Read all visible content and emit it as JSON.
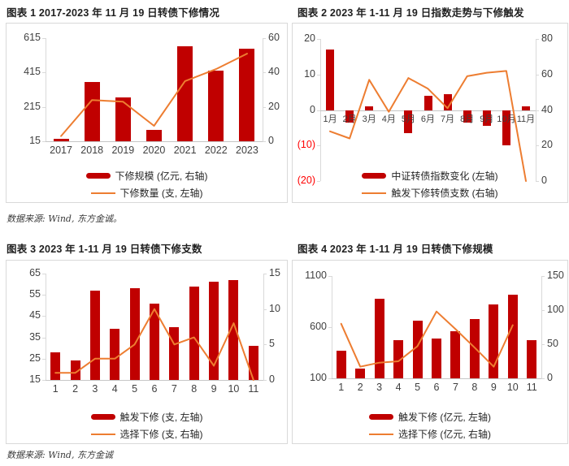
{
  "colors": {
    "bar": "#c00000",
    "line": "#ed7d31",
    "axis": "#d9d9d9",
    "tick_label": "#404040",
    "negative_tick_label": "#ff0000",
    "title": "#1f1f1f"
  },
  "footers": {
    "row1": "数据来源: Wind, 东方金诚。",
    "row2": "数据来源: Wind, 东方金诚"
  },
  "chart_data": [
    {
      "type": "bar+line",
      "title": "图表 1 2017-2023 年 11 月 19 日转债下修情况",
      "categories": [
        "2017",
        "2018",
        "2019",
        "2020",
        "2021",
        "2022",
        "2023"
      ],
      "series": [
        {
          "name": "下修规模 (亿元, 右轴)",
          "type": "bar",
          "plot_axis": "left",
          "values": [
            29,
            361,
            271,
            80,
            567,
            428,
            552
          ]
        },
        {
          "name": "下修数量 (支, 左轴)",
          "type": "line",
          "plot_axis": "right",
          "values": [
            3,
            24,
            23,
            9,
            35,
            42,
            51
          ]
        }
      ],
      "left_axis": {
        "ticks": [
          "615",
          "415",
          "215",
          "15"
        ],
        "min": 15,
        "max": 615
      },
      "right_axis": {
        "ticks": [
          "60",
          "40",
          "20",
          "0"
        ],
        "min": 0,
        "max": 60
      },
      "legend": [
        "下修规模 (亿元, 右轴)",
        "下修数量 (支, 左轴)"
      ],
      "grid": false,
      "legend_position": "bottom"
    },
    {
      "type": "bar+line",
      "title": "图表 2 2023 年 1-11 月 19 日指数走势与下修触发",
      "categories": [
        "1月",
        "2月",
        "3月",
        "4月",
        "5月",
        "6月",
        "7月",
        "8月",
        "9月",
        "10月",
        "11月"
      ],
      "series": [
        {
          "name": "中证转债指数变化 (左轴)",
          "type": "bar",
          "plot_axis": "left",
          "values": [
            17,
            -3.5,
            1,
            0,
            -6.5,
            4,
            4.5,
            -3.5,
            -4.5,
            -10,
            1
          ]
        },
        {
          "name": "触发下修转债支数 (右轴)",
          "type": "line",
          "plot_axis": "right",
          "values": [
            28,
            24,
            57,
            39,
            58,
            52,
            41,
            59,
            61,
            62,
            0
          ]
        }
      ],
      "left_axis": {
        "ticks": [
          "20",
          "10",
          "0",
          "(10)",
          "(20)"
        ],
        "min": -20,
        "max": 20
      },
      "right_axis": {
        "ticks": [
          "80",
          "60",
          "40",
          "20",
          "0"
        ],
        "min": 0,
        "max": 80
      },
      "legend": [
        "中证转债指数变化 (左轴)",
        "触发下修转债支数 (右轴)"
      ],
      "grid": false,
      "legend_position": "bottom"
    },
    {
      "type": "bar+line",
      "title": "图表 3 2023 年 1-11 月 19 日转债下修支数",
      "categories": [
        "1",
        "2",
        "3",
        "4",
        "5",
        "6",
        "7",
        "8",
        "9",
        "10",
        "11"
      ],
      "series": [
        {
          "name": "触发下修 (支, 左轴)",
          "type": "bar",
          "plot_axis": "left",
          "values": [
            28,
            24,
            57,
            39,
            58,
            51,
            40,
            59,
            61,
            62,
            31
          ]
        },
        {
          "name": "选择下修 (支, 右轴)",
          "type": "line",
          "plot_axis": "right",
          "values": [
            1,
            1,
            3,
            3,
            5,
            10,
            5,
            6,
            2,
            8,
            0
          ]
        }
      ],
      "left_axis": {
        "ticks": [
          "65",
          "55",
          "45",
          "35",
          "25",
          "15"
        ],
        "min": 15,
        "max": 65
      },
      "right_axis": {
        "ticks": [
          "15",
          "10",
          "5",
          "0"
        ],
        "min": 0,
        "max": 15
      },
      "legend": [
        "触发下修 (支, 左轴)",
        "选择下修 (支, 右轴)"
      ],
      "grid": false,
      "legend_position": "bottom"
    },
    {
      "type": "bar+line",
      "title": "图表 4 2023 年 1-11 月 19 日转债下修规模",
      "categories": [
        "1",
        "2",
        "3",
        "4",
        "5",
        "6",
        "7",
        "8",
        "9",
        "10",
        "11"
      ],
      "series": [
        {
          "name": "触发下修 (亿元, 左轴)",
          "type": "bar",
          "plot_axis": "left",
          "values": [
            370,
            195,
            880,
            470,
            665,
            490,
            560,
            680,
            820,
            920,
            470
          ]
        },
        {
          "name": "选择下修 (亿元, 右轴)",
          "type": "line",
          "plot_axis": "right",
          "values": [
            80,
            17,
            23,
            25,
            47,
            98,
            72,
            45,
            17,
            78,
            null
          ]
        }
      ],
      "left_axis": {
        "ticks": [
          "1100",
          "600",
          "100"
        ],
        "min": 100,
        "max": 1100
      },
      "right_axis": {
        "ticks": [
          "150",
          "100",
          "50",
          "0"
        ],
        "min": 0,
        "max": 150
      },
      "legend": [
        "触发下修 (亿元, 左轴)",
        "选择下修 (亿元, 右轴)"
      ],
      "grid": false,
      "legend_position": "bottom"
    }
  ]
}
